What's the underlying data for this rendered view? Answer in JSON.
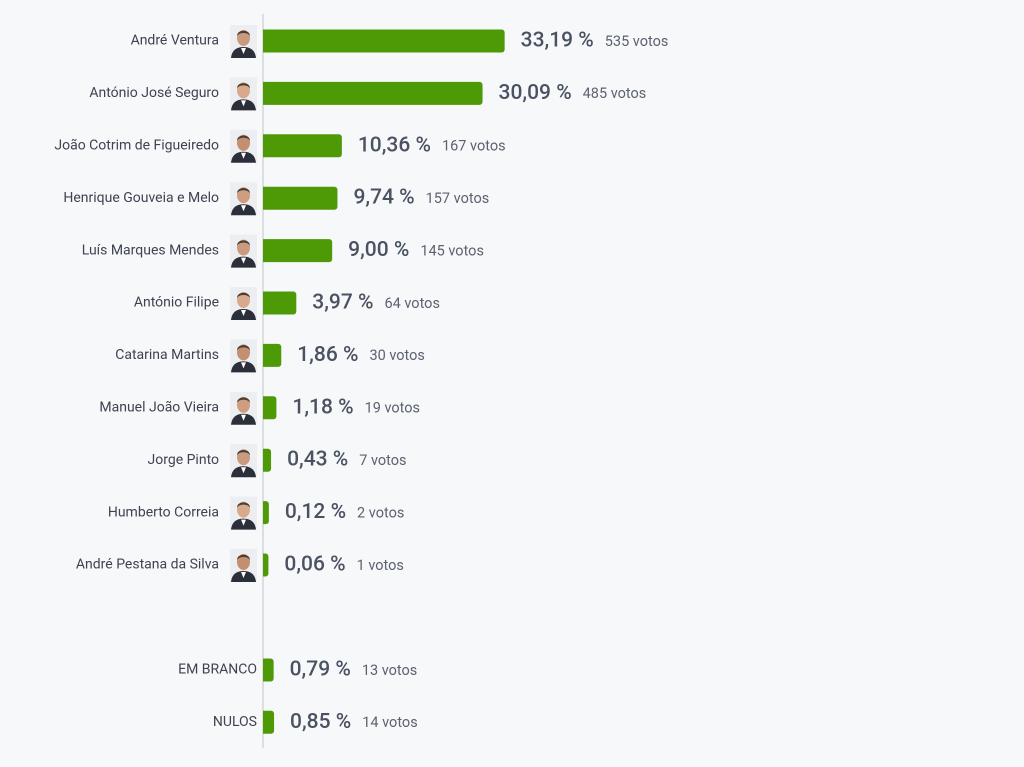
{
  "chart_data": [
    {
      "type": "bar",
      "orientation": "horizontal",
      "color": "#4e9a06",
      "categories": [
        "André Ventura",
        "António José Seguro",
        "João Cotrim de Figueiredo",
        "Henrique Gouveia e Melo",
        "Luís Marques Mendes",
        "António Filipe",
        "Catarina Martins",
        "Manuel João Vieira",
        "Jorge Pinto",
        "Humberto Correia",
        "André Pestana da Silva"
      ],
      "values": [
        33.19,
        30.09,
        10.36,
        9.74,
        9.0,
        3.97,
        1.86,
        1.18,
        0.43,
        0.12,
        0.06
      ],
      "value_labels": [
        "33,19 %",
        "30,09 %",
        "10,36 %",
        "9,74 %",
        "9,00 %",
        "3,97 %",
        "1,86 %",
        "1,18 %",
        "0,43 %",
        "0,12 %",
        "0,06 %"
      ],
      "vote_labels": [
        "535 votos",
        "485 votos",
        "167 votos",
        "157 votos",
        "145 votos",
        "64 votos",
        "30 votos",
        "19 votos",
        "7 votos",
        "2 votos",
        "1 votos"
      ]
    },
    {
      "type": "bar",
      "orientation": "horizontal",
      "color": "#4e9a06",
      "categories": [
        "EM BRANCO",
        "NULOS"
      ],
      "values": [
        0.79,
        0.85
      ],
      "value_labels": [
        "0,79 %",
        "0,85 %"
      ],
      "vote_labels": [
        "13 votos",
        "14 votos"
      ]
    }
  ]
}
